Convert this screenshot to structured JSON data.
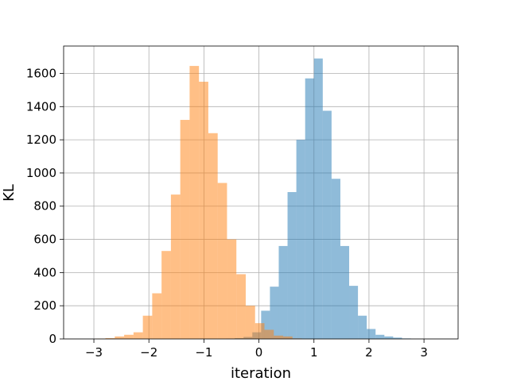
{
  "chart_data": {
    "type": "histogram",
    "xlabel": "iteration",
    "ylabel": "KL",
    "xlim": [
      -3.55,
      3.62
    ],
    "ylim": [
      0,
      1765
    ],
    "xticks": [
      -3,
      -2,
      -1,
      0,
      1,
      2,
      3
    ],
    "xtick_labels": [
      "−3",
      "−2",
      "−1",
      "0",
      "1",
      "2",
      "3"
    ],
    "yticks": [
      0,
      200,
      400,
      600,
      800,
      1000,
      1200,
      1400,
      1600
    ],
    "ytick_labels": [
      "0",
      "200",
      "400",
      "600",
      "800",
      "1000",
      "1200",
      "1400",
      "1600"
    ],
    "grid": true,
    "series": [
      {
        "color": "#1f77b4",
        "opacity": 0.5,
        "bin_edges": [
          -0.6,
          -0.44,
          -0.28,
          -0.12,
          0.04,
          0.2,
          0.36,
          0.52,
          0.68,
          0.84,
          1.0,
          1.16,
          1.32,
          1.48,
          1.64,
          1.8,
          1.96,
          2.12,
          2.28,
          2.44,
          2.6,
          2.76
        ],
        "counts": [
          2,
          5,
          12,
          40,
          170,
          315,
          560,
          885,
          1200,
          1570,
          1690,
          1375,
          965,
          560,
          320,
          140,
          60,
          25,
          15,
          8,
          3
        ]
      },
      {
        "color": "#ff7f0e",
        "opacity": 0.5,
        "bin_edges": [
          -2.96,
          -2.79,
          -2.62,
          -2.45,
          -2.28,
          -2.11,
          -1.94,
          -1.77,
          -1.6,
          -1.43,
          -1.26,
          -1.09,
          -0.92,
          -0.75,
          -0.58,
          -0.41,
          -0.24,
          -0.07,
          0.1,
          0.27,
          0.44,
          0.61,
          0.78
        ],
        "counts": [
          2,
          5,
          15,
          25,
          40,
          140,
          275,
          530,
          870,
          1320,
          1645,
          1550,
          1240,
          940,
          600,
          390,
          200,
          95,
          55,
          20,
          15,
          3
        ]
      }
    ]
  }
}
